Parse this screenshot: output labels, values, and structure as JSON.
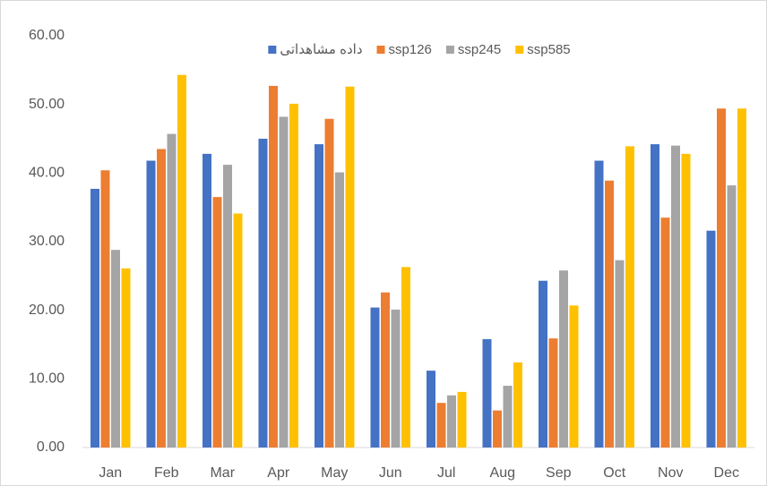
{
  "chart_data": {
    "type": "bar",
    "categories": [
      "Jan",
      "Feb",
      "Mar",
      "Apr",
      "May",
      "Jun",
      "Jul",
      "Aug",
      "Sep",
      "Oct",
      "Nov",
      "Dec"
    ],
    "series": [
      {
        "name": "داده مشاهداتی",
        "color": "#4472c4",
        "values": [
          37.7,
          41.8,
          42.8,
          45.0,
          44.2,
          20.4,
          11.2,
          15.8,
          24.3,
          41.8,
          44.2,
          31.6
        ]
      },
      {
        "name": "ssp126",
        "color": "#ed7d31",
        "values": [
          40.4,
          43.5,
          36.5,
          52.7,
          47.9,
          22.6,
          6.5,
          5.4,
          15.9,
          38.9,
          33.5,
          49.4
        ]
      },
      {
        "name": "ssp245",
        "color": "#a5a5a5",
        "values": [
          28.8,
          45.7,
          41.2,
          48.2,
          40.1,
          20.1,
          7.6,
          9.0,
          25.8,
          27.3,
          44.0,
          38.2
        ]
      },
      {
        "name": "ssp585",
        "color": "#ffc000",
        "values": [
          26.1,
          54.3,
          34.1,
          50.1,
          52.6,
          26.3,
          8.1,
          12.4,
          20.7,
          43.9,
          42.8,
          49.4
        ]
      }
    ],
    "ylim": [
      0,
      60
    ],
    "yticks": [
      {
        "value": 0,
        "label": "0.00"
      },
      {
        "value": 10,
        "label": "10.00"
      },
      {
        "value": 20,
        "label": "20.00"
      },
      {
        "value": 30,
        "label": "30.00"
      },
      {
        "value": 40,
        "label": "40.00"
      },
      {
        "value": 50,
        "label": "50.00"
      },
      {
        "value": 60,
        "label": "60.00"
      }
    ],
    "grid": false,
    "legend": "top"
  }
}
